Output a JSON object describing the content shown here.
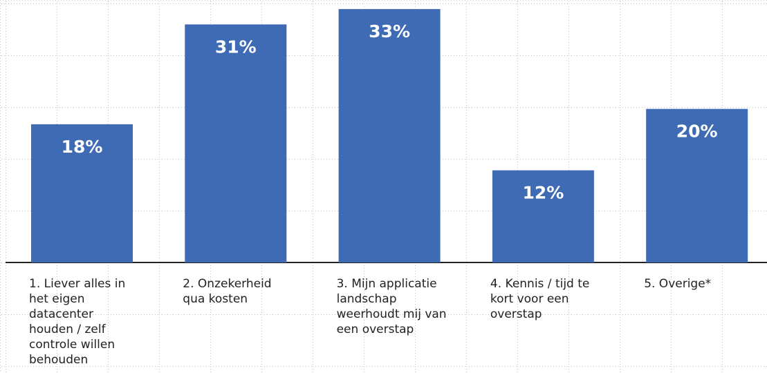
{
  "chart_data": {
    "type": "bar",
    "categories": [
      "1. Liever alles in het eigen datacenter houden / zelf controle willen behouden",
      "2. Onzekerheid qua kosten",
      "3. Mijn applicatie landschap weerhoudt mij van een overstap",
      "4. Kennis / tijd te kort voor een overstap",
      "5. Overige*"
    ],
    "values": [
      18,
      31,
      33,
      12,
      20
    ],
    "value_labels": [
      "18%",
      "31%",
      "33%",
      "12%",
      "20%"
    ],
    "color": "#3f6bb5",
    "ylim": [
      0,
      34
    ]
  }
}
